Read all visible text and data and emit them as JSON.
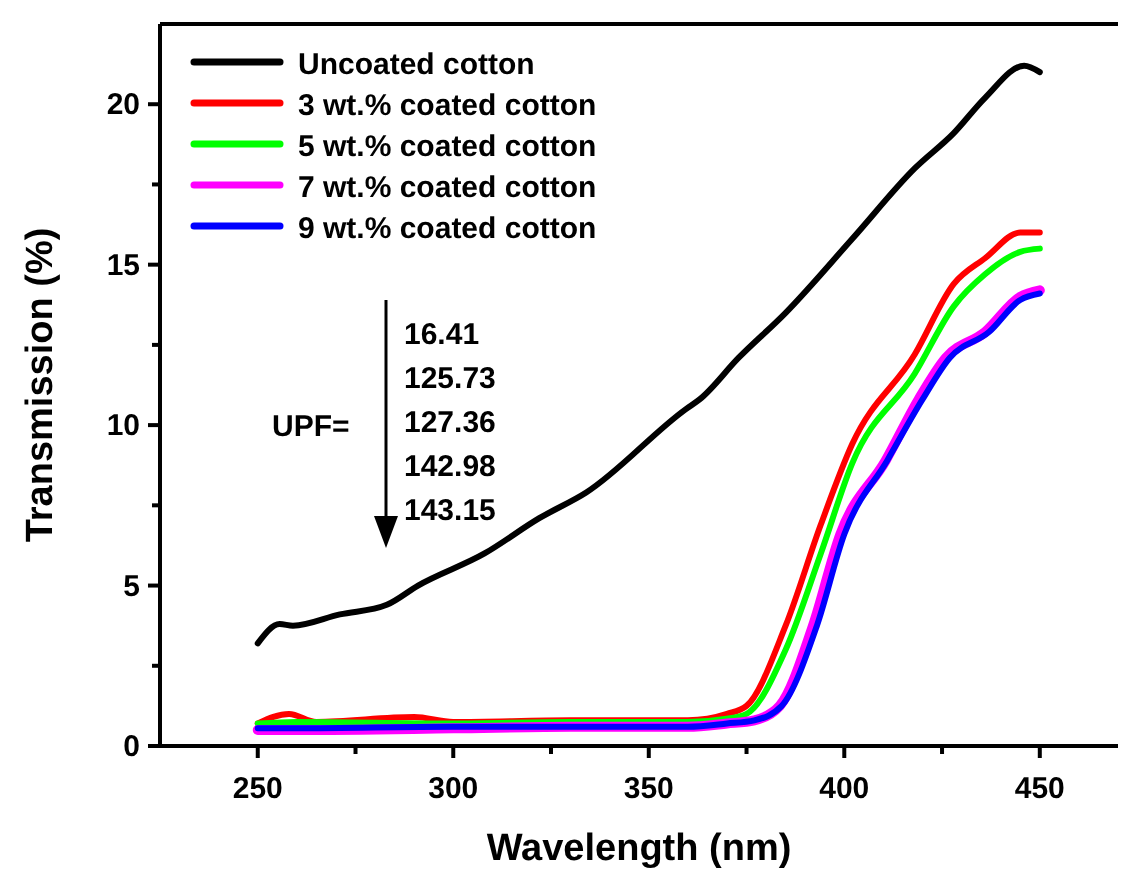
{
  "chart_data": {
    "type": "line",
    "xlabel": "Wavelength (nm)",
    "ylabel": "Transmission (%)",
    "xlim": [
      225,
      470
    ],
    "xticks": [
      {
        "value": 250,
        "label": "250"
      },
      {
        "value": 275,
        "label": null
      },
      {
        "value": 300,
        "label": "300"
      },
      {
        "value": 325,
        "label": null
      },
      {
        "value": 350,
        "label": "350"
      },
      {
        "value": 375,
        "label": null
      },
      {
        "value": 400,
        "label": "400"
      },
      {
        "value": 425,
        "label": null
      },
      {
        "value": 450,
        "label": "450"
      }
    ],
    "ylim": [
      0,
      22.5
    ],
    "yticks": [
      {
        "value": 0,
        "label": "0"
      },
      {
        "value": 2.5,
        "label": null
      },
      {
        "value": 5,
        "label": "5"
      },
      {
        "value": 7.5,
        "label": null
      },
      {
        "value": 10,
        "label": "10"
      },
      {
        "value": 12.5,
        "label": null
      },
      {
        "value": 15,
        "label": "15"
      },
      {
        "value": 17.5,
        "label": null
      },
      {
        "value": 20,
        "label": "20"
      }
    ],
    "grid": false,
    "legend": "top left",
    "line_style": "solid",
    "marker": "none",
    "annotations": [
      "UPF=",
      "16.41",
      "125.73",
      "127.36",
      "142.98",
      "143.15"
    ],
    "series": [
      {
        "name": "Uncoated cotton",
        "color": "#000000",
        "x": [
          250,
          255.6,
          259,
          271,
          283,
          291,
          308,
          322,
          334,
          359.5,
          363,
          373,
          385,
          402,
          418,
          428,
          436,
          446,
          450
        ],
        "values": [
          3.2,
          3.8,
          3.75,
          4.1,
          4.4,
          5.0,
          6.0,
          7.1,
          7.9,
          10.5,
          10.8,
          12.1,
          13.5,
          15.8,
          18.0,
          19.1,
          20.2,
          21.2,
          21.0
        ]
      },
      {
        "name": "3 wt.% coated cotton",
        "color": "#ff0000",
        "x": [
          250,
          258,
          265,
          290,
          300,
          330,
          360,
          370,
          375,
          385,
          394,
          402,
          418,
          428,
          436,
          445,
          450
        ],
        "values": [
          0.7,
          1.0,
          0.75,
          0.9,
          0.75,
          0.8,
          0.8,
          1.0,
          1.25,
          3.75,
          6.9,
          9.4,
          12.2,
          14.4,
          15.2,
          16.0,
          16.0
        ]
      },
      {
        "name": "5 wt.% coated cotton",
        "color": "#00ff00",
        "x": [
          250,
          260,
          300,
          330,
          360,
          370,
          375,
          385,
          394,
          402,
          418,
          428,
          436,
          445,
          450
        ],
        "values": [
          0.7,
          0.75,
          0.7,
          0.75,
          0.75,
          0.85,
          1.0,
          3.0,
          6.0,
          8.8,
          11.6,
          13.7,
          14.7,
          15.4,
          15.5
        ]
      },
      {
        "name": "7 wt.% coated cotton",
        "color": "#ff00ff",
        "x": [
          250,
          260,
          300,
          330,
          360,
          370,
          377,
          383.5,
          392,
          399,
          410.6,
          419,
          426,
          436,
          445,
          450
        ],
        "values": [
          0.5,
          0.5,
          0.55,
          0.6,
          0.6,
          0.7,
          0.8,
          1.25,
          3.75,
          6.6,
          8.9,
          10.8,
          12.1,
          12.9,
          14.0,
          14.2
        ]
      },
      {
        "name": "9 wt.% coated cotton",
        "color": "#0000ff",
        "x": [
          250,
          260,
          300,
          330,
          360,
          370,
          377,
          384,
          393,
          400,
          411,
          420,
          427,
          437,
          445,
          450
        ],
        "values": [
          0.55,
          0.55,
          0.6,
          0.6,
          0.6,
          0.7,
          0.8,
          1.25,
          3.75,
          6.6,
          8.9,
          10.8,
          12.1,
          12.9,
          13.9,
          14.1
        ]
      }
    ]
  }
}
